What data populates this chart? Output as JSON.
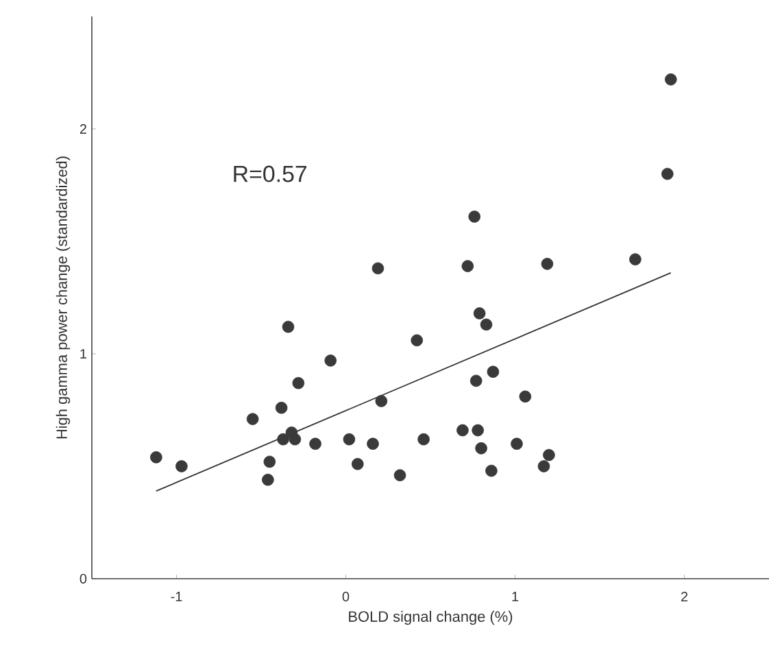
{
  "chart_data": {
    "type": "scatter",
    "xlabel": "BOLD signal change (%)",
    "ylabel": "High gamma power change (standardized)",
    "annotations": [
      "R=0.57"
    ],
    "xlim": [
      -1.5,
      2.5
    ],
    "ylim": [
      0,
      2.5
    ],
    "xticks": [
      -1,
      0,
      1,
      2
    ],
    "yticks": [
      0,
      1,
      2
    ],
    "grid": false,
    "series": [
      {
        "color": "#3a3a3a",
        "marker": "circle",
        "x": [
          -1.12,
          -0.97,
          -0.55,
          -0.38,
          -0.34,
          -0.28,
          -0.09,
          0.19,
          0.42,
          0.21,
          -0.45,
          -0.46,
          -0.37,
          -0.32,
          -0.3,
          -0.18,
          0.02,
          0.07,
          0.16,
          0.32,
          0.46,
          0.69,
          0.76,
          0.72,
          0.78,
          0.77,
          0.79,
          0.83,
          0.8,
          0.87,
          0.86,
          1.01,
          1.06,
          1.19,
          1.2,
          1.17,
          1.71,
          1.9,
          1.92
        ],
        "values": [
          0.54,
          0.5,
          0.71,
          0.76,
          1.12,
          0.87,
          0.97,
          1.38,
          1.06,
          0.79,
          0.52,
          0.44,
          0.62,
          0.65,
          0.62,
          0.6,
          0.62,
          0.51,
          0.6,
          0.46,
          0.62,
          0.66,
          1.61,
          1.39,
          0.66,
          0.88,
          1.18,
          1.13,
          0.58,
          0.92,
          0.48,
          0.6,
          0.81,
          1.4,
          0.55,
          0.5,
          1.42,
          1.8,
          2.22
        ]
      },
      {
        "type": "line",
        "color": "#333333",
        "marker": "none",
        "line_style": "solid",
        "x": [
          -1.12,
          1.92
        ],
        "values": [
          0.39,
          1.36
        ]
      }
    ]
  }
}
